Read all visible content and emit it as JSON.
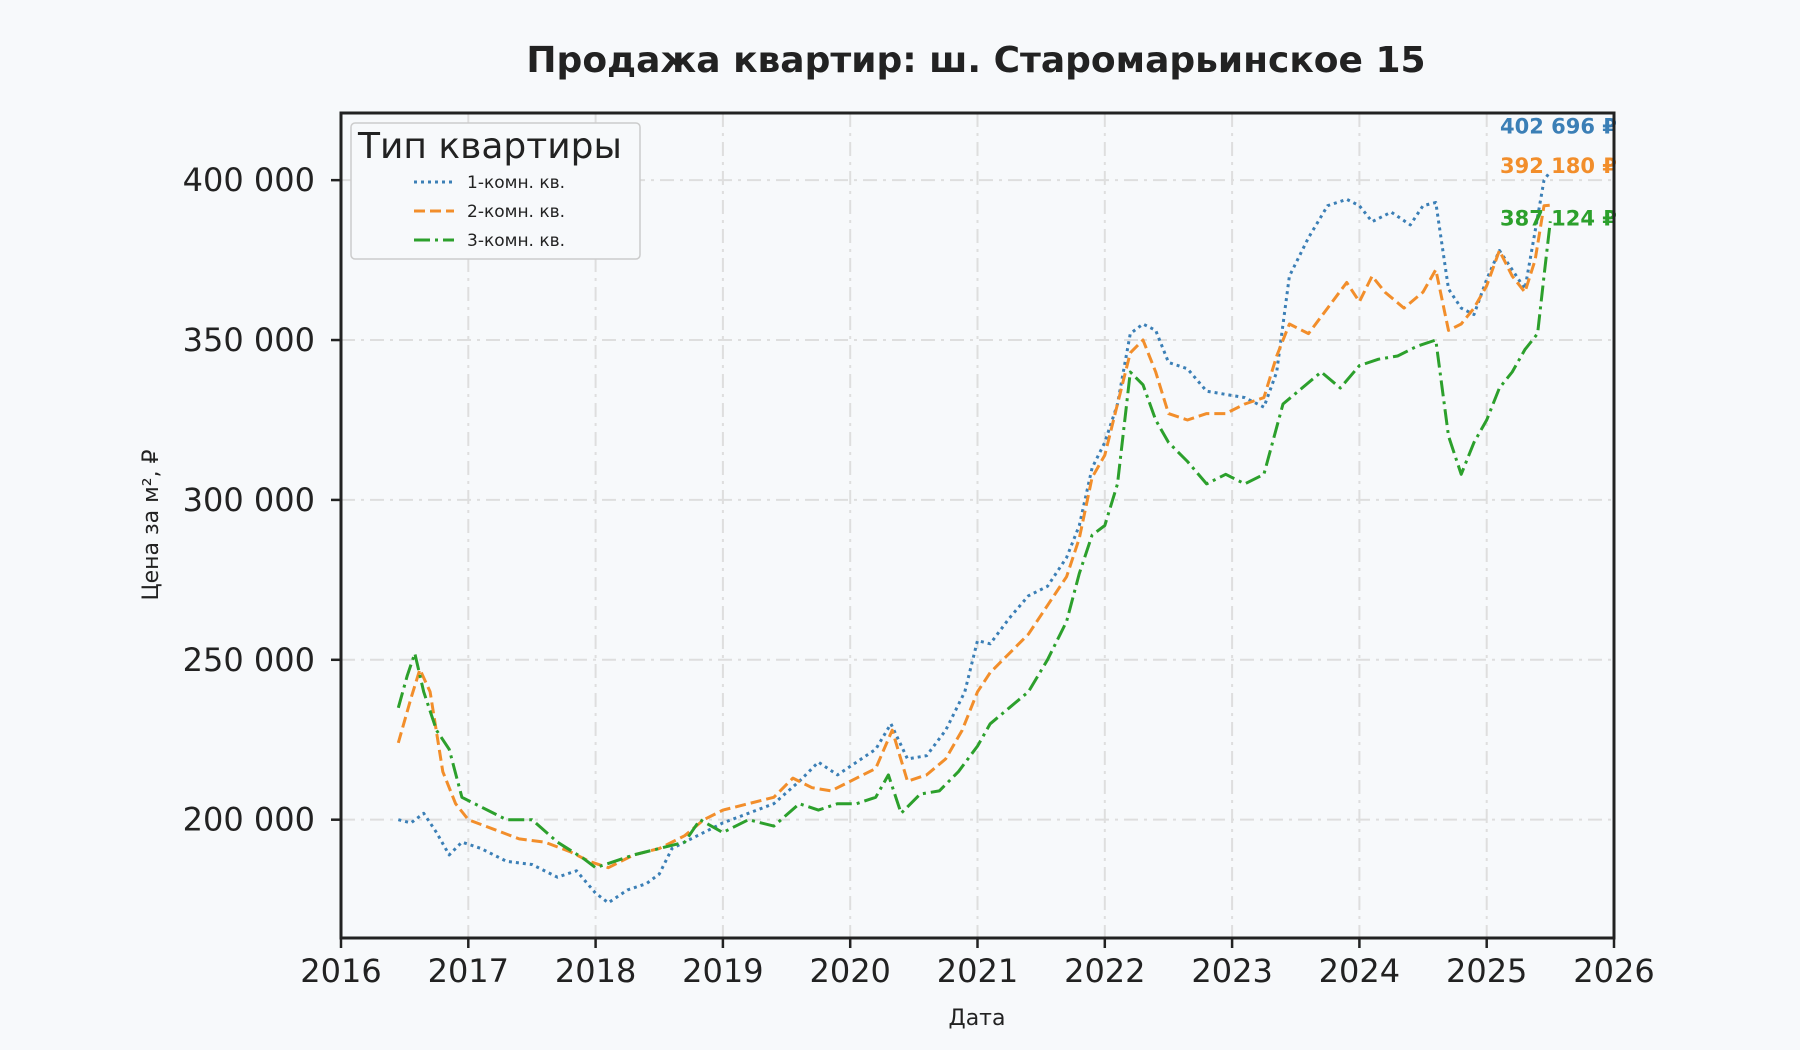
{
  "chart_data": {
    "type": "line",
    "title": "Продажа квартир: ш. Старомарьинское 15",
    "xlabel": "Дата",
    "ylabel": "Цена за м², ₽",
    "xlim": [
      2016,
      2026
    ],
    "ylim": [
      163000,
      421000
    ],
    "x_ticks": [
      2016,
      2017,
      2018,
      2019,
      2020,
      2021,
      2022,
      2023,
      2024,
      2025,
      2026
    ],
    "x_tick_labels": [
      "2016",
      "2017",
      "2018",
      "2019",
      "2020",
      "2021",
      "2022",
      "2023",
      "2024",
      "2025",
      "2026"
    ],
    "y_ticks": [
      200000,
      250000,
      300000,
      350000,
      400000
    ],
    "y_tick_labels": [
      "200 000",
      "250 000",
      "300 000",
      "350 000",
      "400 000"
    ],
    "grid": true,
    "legend": {
      "title": "Тип квартиры",
      "placement": "top-left"
    },
    "series": [
      {
        "name": "1-комн. кв.",
        "color": "#3b7fb6",
        "style": "dotted",
        "end_label": "402 696 ₽",
        "points": [
          [
            2016.45,
            200000
          ],
          [
            2016.55,
            199000
          ],
          [
            2016.65,
            202000
          ],
          [
            2016.75,
            196000
          ],
          [
            2016.85,
            189000
          ],
          [
            2016.95,
            193000
          ],
          [
            2017.1,
            191000
          ],
          [
            2017.3,
            187000
          ],
          [
            2017.5,
            186000
          ],
          [
            2017.7,
            182000
          ],
          [
            2017.85,
            184000
          ],
          [
            2018.0,
            177000
          ],
          [
            2018.1,
            174000
          ],
          [
            2018.25,
            178000
          ],
          [
            2018.4,
            180000
          ],
          [
            2018.5,
            183000
          ],
          [
            2018.6,
            191000
          ],
          [
            2018.8,
            195000
          ],
          [
            2019.0,
            199000
          ],
          [
            2019.2,
            202000
          ],
          [
            2019.4,
            205000
          ],
          [
            2019.6,
            212000
          ],
          [
            2019.75,
            218000
          ],
          [
            2019.9,
            214000
          ],
          [
            2020.05,
            218000
          ],
          [
            2020.2,
            222000
          ],
          [
            2020.32,
            230000
          ],
          [
            2020.45,
            219000
          ],
          [
            2020.6,
            220000
          ],
          [
            2020.75,
            228000
          ],
          [
            2020.9,
            240000
          ],
          [
            2021.0,
            256000
          ],
          [
            2021.1,
            255000
          ],
          [
            2021.25,
            263000
          ],
          [
            2021.4,
            270000
          ],
          [
            2021.55,
            273000
          ],
          [
            2021.7,
            282000
          ],
          [
            2021.8,
            292000
          ],
          [
            2021.9,
            310000
          ],
          [
            2022.0,
            318000
          ],
          [
            2022.1,
            330000
          ],
          [
            2022.2,
            352000
          ],
          [
            2022.3,
            355000
          ],
          [
            2022.4,
            353000
          ],
          [
            2022.5,
            343000
          ],
          [
            2022.65,
            341000
          ],
          [
            2022.8,
            334000
          ],
          [
            2022.95,
            333000
          ],
          [
            2023.1,
            332000
          ],
          [
            2023.25,
            329000
          ],
          [
            2023.35,
            340000
          ],
          [
            2023.45,
            370000
          ],
          [
            2023.6,
            382000
          ],
          [
            2023.75,
            392000
          ],
          [
            2023.9,
            394000
          ],
          [
            2024.0,
            392000
          ],
          [
            2024.1,
            387000
          ],
          [
            2024.25,
            390000
          ],
          [
            2024.4,
            386000
          ],
          [
            2024.5,
            392000
          ],
          [
            2024.6,
            393000
          ],
          [
            2024.7,
            366000
          ],
          [
            2024.8,
            360000
          ],
          [
            2024.9,
            358000
          ],
          [
            2025.0,
            369000
          ],
          [
            2025.1,
            378000
          ],
          [
            2025.2,
            372000
          ],
          [
            2025.3,
            366000
          ],
          [
            2025.38,
            384000
          ],
          [
            2025.45,
            400000
          ],
          [
            2025.5,
            402696
          ]
        ]
      },
      {
        "name": "2-комн. кв.",
        "color": "#f28e2b",
        "style": "dashed",
        "end_label": "392 180 ₽",
        "points": [
          [
            2016.45,
            224000
          ],
          [
            2016.55,
            238000
          ],
          [
            2016.62,
            247000
          ],
          [
            2016.7,
            240000
          ],
          [
            2016.8,
            215000
          ],
          [
            2016.9,
            205000
          ],
          [
            2017.0,
            200000
          ],
          [
            2017.2,
            197000
          ],
          [
            2017.4,
            194000
          ],
          [
            2017.6,
            193000
          ],
          [
            2017.8,
            190000
          ],
          [
            2017.95,
            187000
          ],
          [
            2018.1,
            185000
          ],
          [
            2018.3,
            189000
          ],
          [
            2018.5,
            191000
          ],
          [
            2018.7,
            195000
          ],
          [
            2018.85,
            200000
          ],
          [
            2019.0,
            203000
          ],
          [
            2019.2,
            205000
          ],
          [
            2019.4,
            207000
          ],
          [
            2019.55,
            213000
          ],
          [
            2019.7,
            210000
          ],
          [
            2019.85,
            209000
          ],
          [
            2020.0,
            212000
          ],
          [
            2020.2,
            216000
          ],
          [
            2020.33,
            228000
          ],
          [
            2020.45,
            212000
          ],
          [
            2020.6,
            214000
          ],
          [
            2020.75,
            219000
          ],
          [
            2020.88,
            228000
          ],
          [
            2021.0,
            240000
          ],
          [
            2021.1,
            246000
          ],
          [
            2021.25,
            252000
          ],
          [
            2021.4,
            258000
          ],
          [
            2021.55,
            267000
          ],
          [
            2021.7,
            276000
          ],
          [
            2021.8,
            288000
          ],
          [
            2021.9,
            307000
          ],
          [
            2022.0,
            314000
          ],
          [
            2022.1,
            330000
          ],
          [
            2022.2,
            346000
          ],
          [
            2022.3,
            350000
          ],
          [
            2022.4,
            340000
          ],
          [
            2022.5,
            327000
          ],
          [
            2022.65,
            325000
          ],
          [
            2022.8,
            327000
          ],
          [
            2022.95,
            327000
          ],
          [
            2023.1,
            330000
          ],
          [
            2023.25,
            332000
          ],
          [
            2023.35,
            345000
          ],
          [
            2023.45,
            355000
          ],
          [
            2023.6,
            352000
          ],
          [
            2023.75,
            360000
          ],
          [
            2023.9,
            368000
          ],
          [
            2024.0,
            362000
          ],
          [
            2024.1,
            370000
          ],
          [
            2024.2,
            365000
          ],
          [
            2024.35,
            360000
          ],
          [
            2024.5,
            365000
          ],
          [
            2024.6,
            372000
          ],
          [
            2024.7,
            353000
          ],
          [
            2024.8,
            355000
          ],
          [
            2024.9,
            360000
          ],
          [
            2025.0,
            367000
          ],
          [
            2025.1,
            378000
          ],
          [
            2025.2,
            370000
          ],
          [
            2025.3,
            365000
          ],
          [
            2025.38,
            375000
          ],
          [
            2025.45,
            392000
          ],
          [
            2025.5,
            392180
          ]
        ]
      },
      {
        "name": "3-комн. кв.",
        "color": "#2ca02c",
        "style": "dashdot",
        "end_label": "387 124 ₽",
        "points": [
          [
            2016.45,
            235000
          ],
          [
            2016.52,
            245000
          ],
          [
            2016.58,
            252000
          ],
          [
            2016.65,
            240000
          ],
          [
            2016.75,
            228000
          ],
          [
            2016.85,
            222000
          ],
          [
            2016.95,
            207000
          ],
          [
            2017.1,
            204000
          ],
          [
            2017.3,
            200000
          ],
          [
            2017.5,
            200000
          ],
          [
            2017.7,
            193000
          ],
          [
            2017.9,
            188000
          ],
          [
            2018.0,
            185000
          ],
          [
            2018.15,
            187000
          ],
          [
            2018.3,
            189000
          ],
          [
            2018.5,
            191000
          ],
          [
            2018.7,
            193000
          ],
          [
            2018.82,
            200000
          ],
          [
            2019.0,
            196000
          ],
          [
            2019.2,
            200000
          ],
          [
            2019.4,
            198000
          ],
          [
            2019.6,
            205000
          ],
          [
            2019.75,
            203000
          ],
          [
            2019.9,
            205000
          ],
          [
            2020.05,
            205000
          ],
          [
            2020.2,
            207000
          ],
          [
            2020.3,
            214000
          ],
          [
            2020.4,
            202000
          ],
          [
            2020.55,
            208000
          ],
          [
            2020.7,
            209000
          ],
          [
            2020.85,
            215000
          ],
          [
            2021.0,
            223000
          ],
          [
            2021.1,
            230000
          ],
          [
            2021.25,
            235000
          ],
          [
            2021.4,
            240000
          ],
          [
            2021.55,
            250000
          ],
          [
            2021.7,
            262000
          ],
          [
            2021.8,
            277000
          ],
          [
            2021.9,
            289000
          ],
          [
            2022.0,
            292000
          ],
          [
            2022.1,
            305000
          ],
          [
            2022.2,
            340000
          ],
          [
            2022.3,
            336000
          ],
          [
            2022.4,
            325000
          ],
          [
            2022.5,
            318000
          ],
          [
            2022.65,
            312000
          ],
          [
            2022.8,
            305000
          ],
          [
            2022.95,
            308000
          ],
          [
            2023.1,
            305000
          ],
          [
            2023.25,
            308000
          ],
          [
            2023.4,
            330000
          ],
          [
            2023.55,
            335000
          ],
          [
            2023.7,
            340000
          ],
          [
            2023.85,
            335000
          ],
          [
            2024.0,
            342000
          ],
          [
            2024.15,
            344000
          ],
          [
            2024.3,
            345000
          ],
          [
            2024.45,
            348000
          ],
          [
            2024.6,
            350000
          ],
          [
            2024.7,
            320000
          ],
          [
            2024.8,
            308000
          ],
          [
            2024.9,
            318000
          ],
          [
            2025.0,
            325000
          ],
          [
            2025.1,
            335000
          ],
          [
            2025.2,
            340000
          ],
          [
            2025.3,
            347000
          ],
          [
            2025.4,
            352000
          ],
          [
            2025.45,
            370000
          ],
          [
            2025.5,
            387124
          ]
        ]
      }
    ]
  }
}
